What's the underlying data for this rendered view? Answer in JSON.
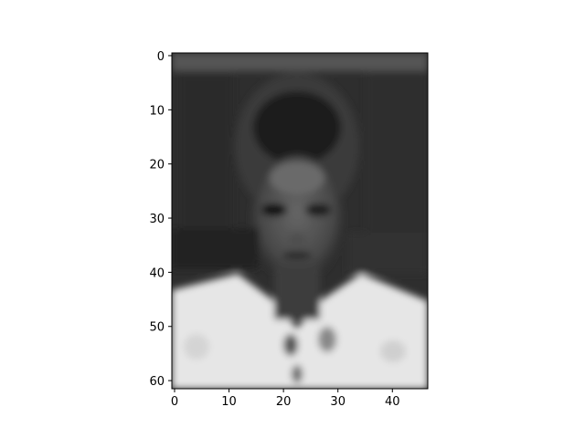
{
  "chart_data": {
    "type": "heatmap",
    "title": "",
    "xlabel": "",
    "ylabel": "",
    "colormap": "gray",
    "image_shape": [
      62,
      47
    ],
    "xlim": [
      -0.5,
      46.5
    ],
    "ylim": [
      61.5,
      -0.5
    ],
    "x_ticks": [
      0,
      10,
      20,
      30,
      40
    ],
    "y_ticks": [
      0,
      10,
      20,
      30,
      40,
      50,
      60
    ],
    "y_axis_inverted": true,
    "grid": false,
    "content": "grayscale image reconstruction of a face: dark background, dark hair, white shirt in lower portion"
  },
  "colors": {
    "axis": "#000000",
    "background": "#ffffff",
    "image_dark": "#1c1c1c",
    "image_light": "#f0f0f0"
  }
}
